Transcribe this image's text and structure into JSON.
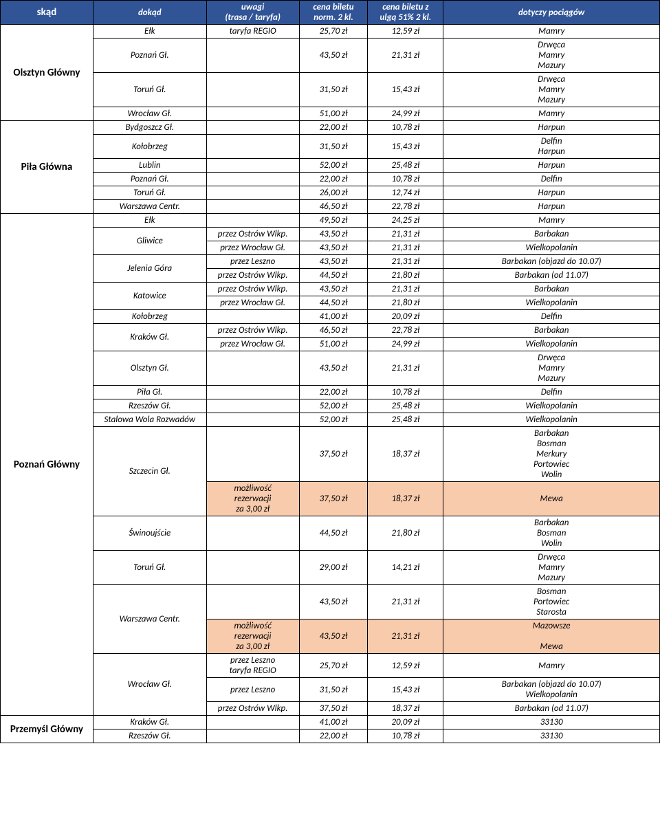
{
  "header": {
    "from": "skąd",
    "to": "dokąd",
    "note": "uwagi\n(trasa / taryfa)",
    "p1": "cena biletu\nnorm. 2 kl.",
    "p2": "cena biletu z\nulgą 51% 2 kl.",
    "train": "dotyczy pociągów"
  },
  "sections": [
    {
      "from": "Olsztyn Główny",
      "rows": [
        {
          "to": "Ełk",
          "note": "taryfa REGIO",
          "p1": "25,70 zł",
          "p2": "12,59 zł",
          "train": "Mamry"
        },
        {
          "to": "Poznań Gł.",
          "note": "",
          "p1": "43,50 zł",
          "p2": "21,31 zł",
          "train": "Drwęca\nMamry\nMazury"
        },
        {
          "to": "Toruń Gł.",
          "note": "",
          "p1": "31,50 zł",
          "p2": "15,43 zł",
          "train": "Drwęca\nMamry\nMazury"
        },
        {
          "to": "Wrocław Gł.",
          "note": "",
          "p1": "51,00 zł",
          "p2": "24,99 zł",
          "train": "Mamry"
        }
      ]
    },
    {
      "from": "Piła Główna",
      "rows": [
        {
          "to": "Bydgoszcz Gł.",
          "note": "",
          "p1": "22,00 zł",
          "p2": "10,78 zł",
          "train": "Harpun"
        },
        {
          "to": "Kołobrzeg",
          "note": "",
          "p1": "31,50 zł",
          "p2": "15,43 zł",
          "train": "Delfin\nHarpun"
        },
        {
          "to": "Lublin",
          "note": "",
          "p1": "52,00 zł",
          "p2": "25,48 zł",
          "train": "Harpun"
        },
        {
          "to": "Poznań Gł.",
          "note": "",
          "p1": "22,00 zł",
          "p2": "10,78 zł",
          "train": "Delfin"
        },
        {
          "to": "Toruń Gł.",
          "note": "",
          "p1": "26,00 zł",
          "p2": "12,74 zł",
          "train": "Harpun"
        },
        {
          "to": "Warszawa Centr.",
          "note": "",
          "p1": "46,50 zł",
          "p2": "22,78 zł",
          "train": "Harpun"
        }
      ]
    },
    {
      "from": "Poznań Główny",
      "rows": [
        {
          "to": "Ełk",
          "note": "",
          "p1": "49,50 zł",
          "p2": "24,25 zł",
          "train": "Mamry"
        },
        {
          "to": "Gliwice",
          "sub": [
            {
              "note": "przez Ostrów Wlkp.",
              "p1": "43,50 zł",
              "p2": "21,31 zł",
              "train": "Barbakan"
            },
            {
              "note": "przez Wrocław Gł.",
              "p1": "43,50 zł",
              "p2": "21,31 zł",
              "train": "Wielkopolanin"
            }
          ]
        },
        {
          "to": "Jelenia Góra",
          "sub": [
            {
              "note": "przez Leszno",
              "p1": "43,50 zł",
              "p2": "21,31 zł",
              "train": "Barbakan (objazd do 10.07)"
            },
            {
              "note": "przez Ostrów Wlkp.",
              "p1": "44,50 zł",
              "p2": "21,80 zł",
              "train": "Barbakan (od 11.07)"
            }
          ]
        },
        {
          "to": "Katowice",
          "sub": [
            {
              "note": "przez Ostrów Wlkp.",
              "p1": "43,50 zł",
              "p2": "21,31 zł",
              "train": "Barbakan"
            },
            {
              "note": "przez Wrocław Gł.",
              "p1": "44,50 zł",
              "p2": "21,80 zł",
              "train": "Wielkopolanin"
            }
          ]
        },
        {
          "to": "Kołobrzeg",
          "note": "",
          "p1": "41,00 zł",
          "p2": "20,09 zł",
          "train": "Delfin"
        },
        {
          "to": "Kraków Gł.",
          "sub": [
            {
              "note": "przez Ostrów Wlkp.",
              "p1": "46,50 zł",
              "p2": "22,78 zł",
              "train": "Barbakan"
            },
            {
              "note": "przez Wrocław Gł.",
              "p1": "51,00 zł",
              "p2": "24,99 zł",
              "train": "Wielkopolanin"
            }
          ]
        },
        {
          "to": "Olsztyn Gł.",
          "note": "",
          "p1": "43,50 zł",
          "p2": "21,31 zł",
          "train": "Drwęca\nMamry\nMazury"
        },
        {
          "to": "Piła Gł.",
          "note": "",
          "p1": "22,00 zł",
          "p2": "10,78 zł",
          "train": "Delfin"
        },
        {
          "to": "Rzeszów Gł.",
          "note": "",
          "p1": "52,00 zł",
          "p2": "25,48 zł",
          "train": "Wielkopolanin"
        },
        {
          "to": "Stalowa Wola Rozwadów",
          "note": "",
          "p1": "52,00 zł",
          "p2": "25,48 zł",
          "train": "Wielkopolanin"
        },
        {
          "to": "Szczecin Gł.",
          "sub": [
            {
              "note": "",
              "p1": "37,50 zł",
              "p2": "18,37 zł",
              "train": "Barbakan\nBosman\nMerkury\nPortowiec\nWolin"
            },
            {
              "note": "możliwość\nrezerwacji\nza 3,00 zł",
              "p1": "37,50 zł",
              "p2": "18,37 zł",
              "train": "Mewa",
              "hl": true
            }
          ]
        },
        {
          "to": "Świnoujście",
          "note": "",
          "p1": "44,50 zł",
          "p2": "21,80 zł",
          "train": "Barbakan\nBosman\nWolin"
        },
        {
          "to": "Toruń Gł.",
          "note": "",
          "p1": "29,00 zł",
          "p2": "14,21 zł",
          "train": "Drwęca\nMamry\nMazury"
        },
        {
          "to": "Warszawa Centr.",
          "sub": [
            {
              "note": "",
              "p1": "43,50 zł",
              "p2": "21,31 zł",
              "train": "Bosman\nPortowiec\nStarosta"
            },
            {
              "note": "możliwość\nrezerwacji\nza 3,00 zł",
              "p1": "43,50 zł",
              "p2": "21,31 zł",
              "train": "Mazowsze\n\nMewa",
              "hl": true
            }
          ]
        },
        {
          "to": "Wrocław Gł.",
          "sub": [
            {
              "note": "przez Leszno\ntaryfa REGIO",
              "p1": "25,70 zł",
              "p2": "12,59 zł",
              "train": "Mamry"
            },
            {
              "note": "przez Leszno",
              "p1": "31,50 zł",
              "p2": "15,43 zł",
              "train": "Barbakan (objazd do 10.07)\nWielkopolanin"
            },
            {
              "note": "przez Ostrów Wlkp.",
              "p1": "37,50 zł",
              "p2": "18,37 zł",
              "train": "Barbakan (od 11.07)"
            }
          ]
        }
      ]
    },
    {
      "from": "Przemyśl Główny",
      "rows": [
        {
          "to": "Kraków Gł.",
          "note": "",
          "p1": "41,00 zł",
          "p2": "20,09 zł",
          "train": "33130"
        },
        {
          "to": "Rzeszów Gł.",
          "note": "",
          "p1": "22,00 zł",
          "p2": "10,78 zł",
          "train": "33130"
        }
      ]
    }
  ]
}
